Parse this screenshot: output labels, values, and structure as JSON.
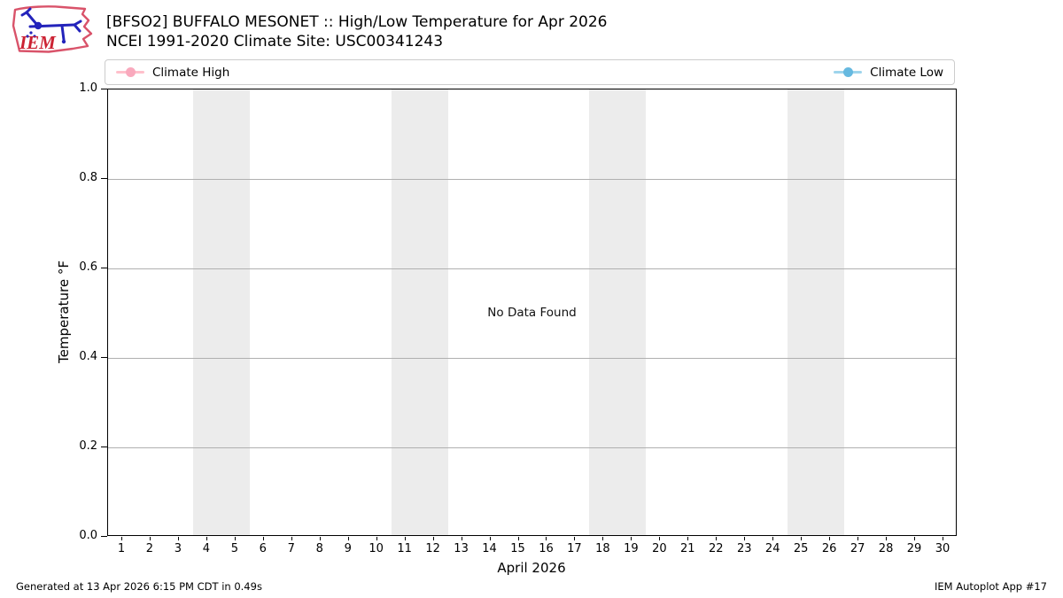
{
  "header": {
    "title_line1": "[BFSO2] BUFFALO MESONET :: High/Low Temperature for Apr 2026",
    "title_line2": "NCEI 1991-2020 Climate Site: USC00341243",
    "logo_text": "IEM"
  },
  "legend": {
    "items": [
      {
        "label": "Climate High",
        "line_color": "#ffc0cb",
        "dot_color": "#f9a9bd"
      },
      {
        "label": "Climate Low",
        "line_color": "#9ed4ec",
        "dot_color": "#66b9e0"
      }
    ]
  },
  "chart_data": {
    "type": "line",
    "title": "[BFSO2] BUFFALO MESONET :: High/Low Temperature for Apr 2026",
    "subtitle": "NCEI 1991-2020 Climate Site: USC00341243",
    "xlabel": "April 2026",
    "ylabel": "Temperature °F",
    "xlim": [
      0.5,
      30.5
    ],
    "ylim": [
      0.0,
      1.0
    ],
    "x_ticks": [
      1,
      2,
      3,
      4,
      5,
      6,
      7,
      8,
      9,
      10,
      11,
      12,
      13,
      14,
      15,
      16,
      17,
      18,
      19,
      20,
      21,
      22,
      23,
      24,
      25,
      26,
      27,
      28,
      29,
      30
    ],
    "y_ticks": [
      "0.0",
      "0.2",
      "0.4",
      "0.6",
      "0.8",
      "1.0"
    ],
    "grid": true,
    "legend_position": "top, expanded full width",
    "series": [
      {
        "name": "Climate High",
        "color": "#ffc0cb",
        "values": []
      },
      {
        "name": "Climate Low",
        "color": "#87ceeb",
        "values": []
      }
    ],
    "no_data_text": "No Data Found",
    "weekend_bands": [
      [
        3.5,
        5.5
      ],
      [
        10.5,
        12.5
      ],
      [
        17.5,
        19.5
      ],
      [
        24.5,
        26.5
      ]
    ],
    "band_color": "#ececec",
    "grid_color": "#b0b0b0"
  },
  "footer": {
    "generated": "Generated at 13 Apr 2026 6:15 PM CDT in 0.49s",
    "app": "IEM Autoplot App #17"
  }
}
